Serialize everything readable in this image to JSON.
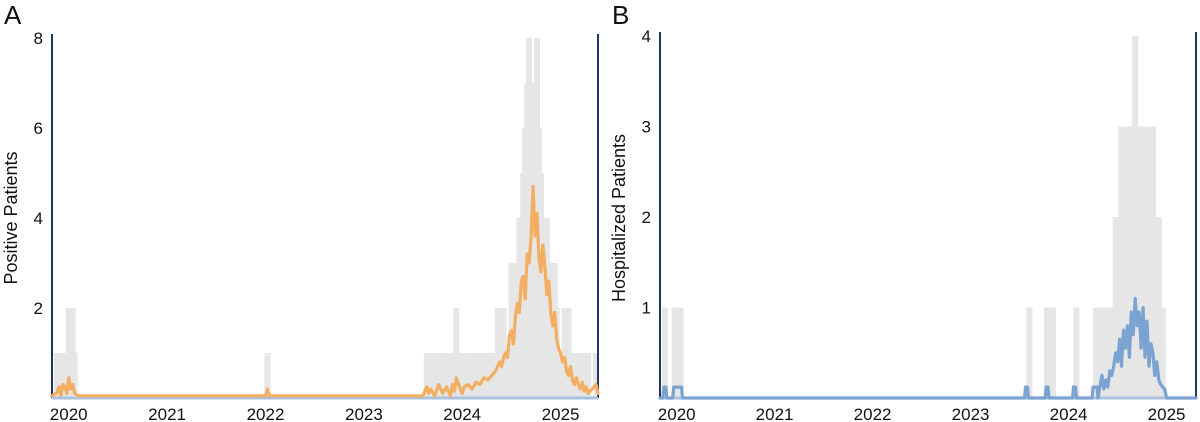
{
  "colors": {
    "background": "#ffffff",
    "raw_bars": "#e6e6e6",
    "axis_line": "#1f3566",
    "baseline": "#a9c2de",
    "panel_a_line": "#f4ae62",
    "panel_b_line": "#7aa3d1",
    "text": "#111111"
  },
  "chart_data": [
    {
      "type": "line",
      "panel_label": "A",
      "title": "",
      "xlabel": "",
      "ylabel": "Positive Patients",
      "xlim": [
        2019.83,
        2025.38
      ],
      "ylim": [
        0,
        8
      ],
      "x_ticks": [
        2020,
        2021,
        2022,
        2023,
        2024,
        2025
      ],
      "x_tick_labels": [
        "2020",
        "2021",
        "2022",
        "2023",
        "2024",
        "2025"
      ],
      "y_ticks": [
        2,
        4,
        6,
        8
      ],
      "y_tick_labels": [
        "2",
        "4",
        "6",
        "8"
      ],
      "grid": false,
      "legend": "none",
      "series": [
        {
          "kind": "weekly-counts",
          "color": "#e6e6e6",
          "x": [
            2019.88,
            2019.9,
            2019.92,
            2019.94,
            2019.96,
            2019.98,
            2020.0,
            2020.02,
            2020.04,
            2020.06,
            2022.02,
            2023.64,
            2023.66,
            2023.72,
            2023.74,
            2023.8,
            2023.82,
            2023.88,
            2023.9,
            2023.94,
            2024.0,
            2024.02,
            2024.08,
            2024.1,
            2024.12,
            2024.16,
            2024.2,
            2024.24,
            2024.28,
            2024.32,
            2024.36,
            2024.4,
            2024.42,
            2024.44,
            2024.46,
            2024.48,
            2024.5,
            2024.52,
            2024.54,
            2024.56,
            2024.58,
            2024.6,
            2024.62,
            2024.64,
            2024.66,
            2024.68,
            2024.7,
            2024.72,
            2024.74,
            2024.76,
            2024.78,
            2024.8,
            2024.82,
            2024.84,
            2024.86,
            2024.88,
            2024.9,
            2024.92,
            2024.94,
            2024.96,
            2024.98,
            2025.0,
            2025.02,
            2025.04,
            2025.06,
            2025.08,
            2025.1,
            2025.12,
            2025.14,
            2025.16,
            2025.18,
            2025.2,
            2025.22,
            2025.24,
            2025.26,
            2025.28,
            2025.36
          ],
          "values": [
            1,
            1,
            0,
            1,
            1,
            1,
            2,
            1,
            2,
            1,
            1,
            1,
            1,
            1,
            1,
            1,
            1,
            1,
            1,
            2,
            1,
            1,
            1,
            1,
            1,
            1,
            1,
            1,
            1,
            1,
            2,
            1,
            2,
            1,
            1,
            1,
            3,
            2,
            2,
            3,
            4,
            3,
            5,
            6,
            7,
            8,
            6,
            7,
            5,
            8,
            6,
            5,
            4,
            3,
            4,
            3,
            3,
            2,
            3,
            2,
            1,
            1,
            1,
            2,
            1,
            2,
            1,
            1,
            1,
            1,
            1,
            1,
            1,
            1,
            1,
            1,
            1
          ]
        },
        {
          "kind": "smoothed",
          "color": "#f4ae62",
          "x": [
            2019.83,
            2019.88,
            2019.9,
            2019.92,
            2019.94,
            2019.96,
            2019.98,
            2020.0,
            2020.02,
            2020.04,
            2020.06,
            2020.1,
            2022.0,
            2022.02,
            2022.04,
            2023.6,
            2023.64,
            2023.66,
            2023.68,
            2023.72,
            2023.76,
            2023.8,
            2023.84,
            2023.88,
            2023.9,
            2023.92,
            2023.94,
            2023.98,
            2024.0,
            2024.02,
            2024.06,
            2024.1,
            2024.14,
            2024.18,
            2024.22,
            2024.26,
            2024.3,
            2024.34,
            2024.38,
            2024.4,
            2024.42,
            2024.44,
            2024.46,
            2024.48,
            2024.5,
            2024.52,
            2024.54,
            2024.56,
            2024.58,
            2024.6,
            2024.62,
            2024.64,
            2024.66,
            2024.68,
            2024.7,
            2024.72,
            2024.74,
            2024.76,
            2024.78,
            2024.8,
            2024.82,
            2024.84,
            2024.86,
            2024.88,
            2024.9,
            2024.92,
            2024.94,
            2024.96,
            2024.98,
            2025.0,
            2025.02,
            2025.04,
            2025.06,
            2025.08,
            2025.1,
            2025.12,
            2025.14,
            2025.16,
            2025.18,
            2025.2,
            2025.22,
            2025.24,
            2025.26,
            2025.28,
            2025.32,
            2025.36,
            2025.38
          ],
          "values": [
            0.05,
            0.12,
            0.25,
            0.05,
            0.3,
            0.25,
            0.1,
            0.45,
            0.2,
            0.3,
            0.1,
            0.05,
            0.05,
            0.2,
            0.05,
            0.05,
            0.25,
            0.1,
            0.2,
            0.05,
            0.3,
            0.1,
            0.25,
            0.05,
            0.3,
            0.15,
            0.45,
            0.2,
            0.1,
            0.25,
            0.3,
            0.2,
            0.35,
            0.3,
            0.45,
            0.4,
            0.5,
            0.6,
            0.8,
            0.7,
            0.9,
            1.0,
            0.9,
            1.4,
            1.5,
            1.2,
            1.8,
            2.1,
            1.9,
            2.6,
            2.7,
            2.2,
            3.2,
            3.0,
            3.6,
            4.7,
            3.6,
            4.1,
            3.1,
            2.8,
            3.4,
            2.9,
            2.3,
            2.6,
            1.9,
            1.6,
            1.9,
            1.3,
            1.1,
            1.0,
            0.8,
            0.9,
            0.6,
            0.5,
            0.7,
            0.4,
            0.3,
            0.45,
            0.3,
            0.2,
            0.35,
            0.15,
            0.25,
            0.1,
            0.2,
            0.3,
            0.1
          ]
        }
      ]
    },
    {
      "type": "line",
      "panel_label": "B",
      "title": "",
      "xlabel": "",
      "ylabel": "Hospitalized Patients",
      "xlim": [
        2019.83,
        2025.3
      ],
      "ylim": [
        0,
        4
      ],
      "x_ticks": [
        2020,
        2021,
        2022,
        2023,
        2024,
        2025
      ],
      "x_tick_labels": [
        "2020",
        "2021",
        "2022",
        "2023",
        "2024",
        "2025"
      ],
      "y_ticks": [
        1,
        2,
        3,
        4
      ],
      "y_tick_labels": [
        "1",
        "2",
        "3",
        "4"
      ],
      "grid": false,
      "legend": "none",
      "series": [
        {
          "kind": "weekly-counts",
          "color": "#e6e6e6",
          "x": [
            2019.88,
            2019.98,
            2020.0,
            2020.02,
            2020.04,
            2023.6,
            2023.78,
            2023.84,
            2024.08,
            2024.28,
            2024.3,
            2024.36,
            2024.38,
            2024.42,
            2024.48,
            2024.52,
            2024.54,
            2024.56,
            2024.58,
            2024.6,
            2024.62,
            2024.64,
            2024.66,
            2024.68,
            2024.7,
            2024.72,
            2024.74,
            2024.76,
            2024.78,
            2024.8,
            2024.82,
            2024.84,
            2024.86,
            2024.88,
            2024.9,
            2024.92,
            2024.94,
            2024.96
          ],
          "values": [
            1,
            1,
            1,
            1,
            1,
            1,
            1,
            1,
            1,
            1,
            1,
            1,
            1,
            1,
            2,
            1,
            3,
            2,
            2,
            3,
            2,
            3,
            3,
            4,
            3,
            3,
            2,
            3,
            2,
            3,
            2,
            2,
            3,
            2,
            2,
            2,
            1,
            1
          ]
        },
        {
          "kind": "smoothed",
          "color": "#7aa3d1",
          "x": [
            2019.83,
            2019.86,
            2019.87,
            2019.89,
            2019.9,
            2019.96,
            2019.97,
            2020.05,
            2020.06,
            2023.55,
            2023.56,
            2023.58,
            2023.59,
            2023.76,
            2023.77,
            2023.79,
            2023.8,
            2024.04,
            2024.05,
            2024.07,
            2024.08,
            2024.24,
            2024.25,
            2024.29,
            2024.3,
            2024.34,
            2024.36,
            2024.38,
            2024.4,
            2024.42,
            2024.44,
            2024.46,
            2024.48,
            2024.5,
            2024.52,
            2024.54,
            2024.56,
            2024.58,
            2024.6,
            2024.62,
            2024.64,
            2024.66,
            2024.68,
            2024.7,
            2024.72,
            2024.74,
            2024.76,
            2024.78,
            2024.8,
            2024.82,
            2024.84,
            2024.86,
            2024.88,
            2024.9,
            2024.92,
            2024.94,
            2024.96,
            2024.98,
            2025.0,
            2025.3
          ],
          "values": [
            0,
            0,
            0.12,
            0.12,
            0,
            0,
            0.12,
            0.12,
            0,
            0,
            0.12,
            0.12,
            0,
            0,
            0.12,
            0.12,
            0,
            0,
            0.12,
            0.12,
            0,
            0,
            0.12,
            0.12,
            0,
            0.25,
            0.1,
            0.2,
            0.12,
            0.3,
            0.25,
            0.35,
            0.5,
            0.4,
            0.65,
            0.35,
            0.75,
            0.55,
            0.8,
            0.45,
            0.95,
            0.7,
            1.1,
            0.8,
            0.95,
            0.55,
            1.0,
            0.45,
            0.85,
            0.35,
            0.6,
            0.5,
            0.25,
            0.4,
            0.2,
            0.15,
            0.12,
            0.1,
            0,
            0
          ]
        }
      ]
    }
  ]
}
